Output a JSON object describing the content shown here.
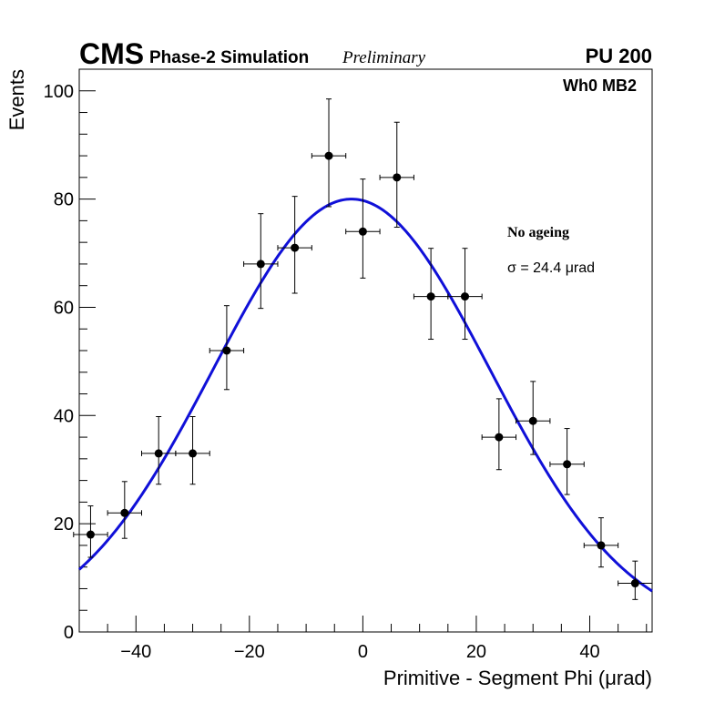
{
  "header": {
    "experiment": "CMS",
    "simulation_label": "Phase-2 Simulation",
    "status": "Preliminary",
    "pileup": "PU 200"
  },
  "chart_data": {
    "type": "scatter",
    "title": "",
    "xlabel": "Primitive - Segment Phi (μrad)",
    "ylabel": "Events",
    "xlim": [
      -50,
      51
    ],
    "ylim": [
      0,
      104
    ],
    "x_ticks": [
      -40,
      -20,
      0,
      20,
      40
    ],
    "x_tick_labels": [
      "−40",
      "−20",
      "0",
      "20",
      "40"
    ],
    "y_ticks": [
      0,
      20,
      40,
      60,
      80,
      100
    ],
    "y_tick_labels": [
      "0",
      "20",
      "40",
      "60",
      "80",
      "100"
    ],
    "grid": false,
    "annotations": {
      "region": "Wh0 MB2",
      "condition": "No ageing",
      "fit_result": "σ = 24.4  μrad"
    },
    "series": [
      {
        "name": "data",
        "style": "points-with-errors",
        "color": "#000000",
        "bin_half_width": 3,
        "x": [
          -48,
          -42,
          -36,
          -30,
          -24,
          -18,
          -12,
          -6,
          0,
          6,
          12,
          18,
          24,
          30,
          36,
          42,
          48
        ],
        "y": [
          18,
          22,
          33,
          33,
          52,
          68,
          71,
          88,
          74,
          84,
          62,
          62,
          36,
          39,
          31,
          16,
          9
        ],
        "y_err_low": [
          4.2,
          4.7,
          5.7,
          5.7,
          7.2,
          8.2,
          8.4,
          9.4,
          8.6,
          9.2,
          7.9,
          7.9,
          6.0,
          6.2,
          5.6,
          4.0,
          3.0
        ],
        "y_err_high": [
          5.3,
          5.8,
          6.8,
          6.8,
          8.3,
          9.3,
          9.5,
          10.5,
          9.7,
          10.2,
          8.9,
          8.9,
          7.1,
          7.3,
          6.6,
          5.1,
          4.1
        ]
      },
      {
        "name": "gaussian fit",
        "style": "line",
        "color": "#1010d8",
        "model": "gaussian",
        "amplitude": 80,
        "mean": -2,
        "sigma": 24.4
      }
    ]
  }
}
